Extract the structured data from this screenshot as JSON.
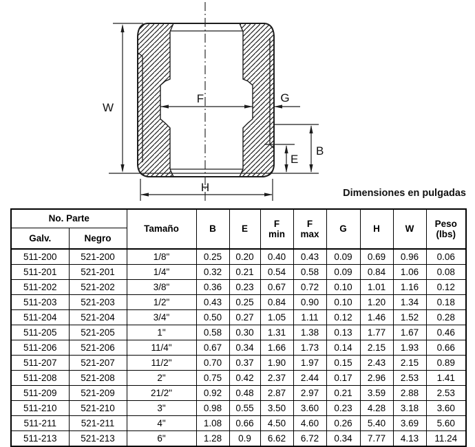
{
  "diagram": {
    "caption": "Dimensiones en pulgadas",
    "labels": {
      "w": "W",
      "f": "F",
      "g": "G",
      "b": "B",
      "e": "E",
      "h": "H"
    }
  },
  "table": {
    "header": {
      "no_parte": "No. Parte",
      "galv": "Galv.",
      "negro": "Negro",
      "tamano": "Tamaño",
      "b": "B",
      "e": "E",
      "f": "F",
      "min": "min",
      "max": "max",
      "g": "G",
      "h": "H",
      "w": "W",
      "peso": "Peso",
      "lbs": "(lbs)"
    },
    "rows": [
      [
        "511-200",
        "521-200",
        "1/8\"",
        "0.25",
        "0.20",
        "0.40",
        "0.43",
        "0.09",
        "0.69",
        "0.96",
        "0.06"
      ],
      [
        "511-201",
        "521-201",
        "1/4\"",
        "0.32",
        "0.21",
        "0.54",
        "0.58",
        "0.09",
        "0.84",
        "1.06",
        "0.08"
      ],
      [
        "511-202",
        "521-202",
        "3/8\"",
        "0.36",
        "0.23",
        "0.67",
        "0.72",
        "0.10",
        "1.01",
        "1.16",
        "0.12"
      ],
      [
        "511-203",
        "521-203",
        "1/2\"",
        "0.43",
        "0.25",
        "0.84",
        "0.90",
        "0.10",
        "1.20",
        "1.34",
        "0.18"
      ],
      [
        "511-204",
        "521-204",
        "3/4\"",
        "0.50",
        "0.27",
        "1.05",
        "1.11",
        "0.12",
        "1.46",
        "1.52",
        "0.28"
      ],
      [
        "511-205",
        "521-205",
        "1\"",
        "0.58",
        "0.30",
        "1.31",
        "1.38",
        "0.13",
        "1.77",
        "1.67",
        "0.46"
      ],
      [
        "511-206",
        "521-206",
        "11/4\"",
        "0.67",
        "0.34",
        "1.66",
        "1.73",
        "0.14",
        "2.15",
        "1.93",
        "0.66"
      ],
      [
        "511-207",
        "521-207",
        "11/2\"",
        "0.70",
        "0.37",
        "1.90",
        "1.97",
        "0.15",
        "2.43",
        "2.15",
        "0.89"
      ],
      [
        "511-208",
        "521-208",
        "2\"",
        "0.75",
        "0.42",
        "2.37",
        "2.44",
        "0.17",
        "2.96",
        "2.53",
        "1.41"
      ],
      [
        "511-209",
        "521-209",
        "21/2\"",
        "0.92",
        "0.48",
        "2.87",
        "2.97",
        "0.21",
        "3.59",
        "2.88",
        "2.53"
      ],
      [
        "511-210",
        "521-210",
        "3\"",
        "0.98",
        "0.55",
        "3.50",
        "3.60",
        "0.23",
        "4.28",
        "3.18",
        "3.60"
      ],
      [
        "511-211",
        "521-211",
        "4\"",
        "1.08",
        "0.66",
        "4.50",
        "4.60",
        "0.26",
        "5.40",
        "3.69",
        "5.60"
      ],
      [
        "511-213",
        "521-213",
        "6\"",
        "1.28",
        "0.9",
        "6.62",
        "6.72",
        "0.34",
        "7.77",
        "4.13",
        "11.24"
      ]
    ]
  }
}
